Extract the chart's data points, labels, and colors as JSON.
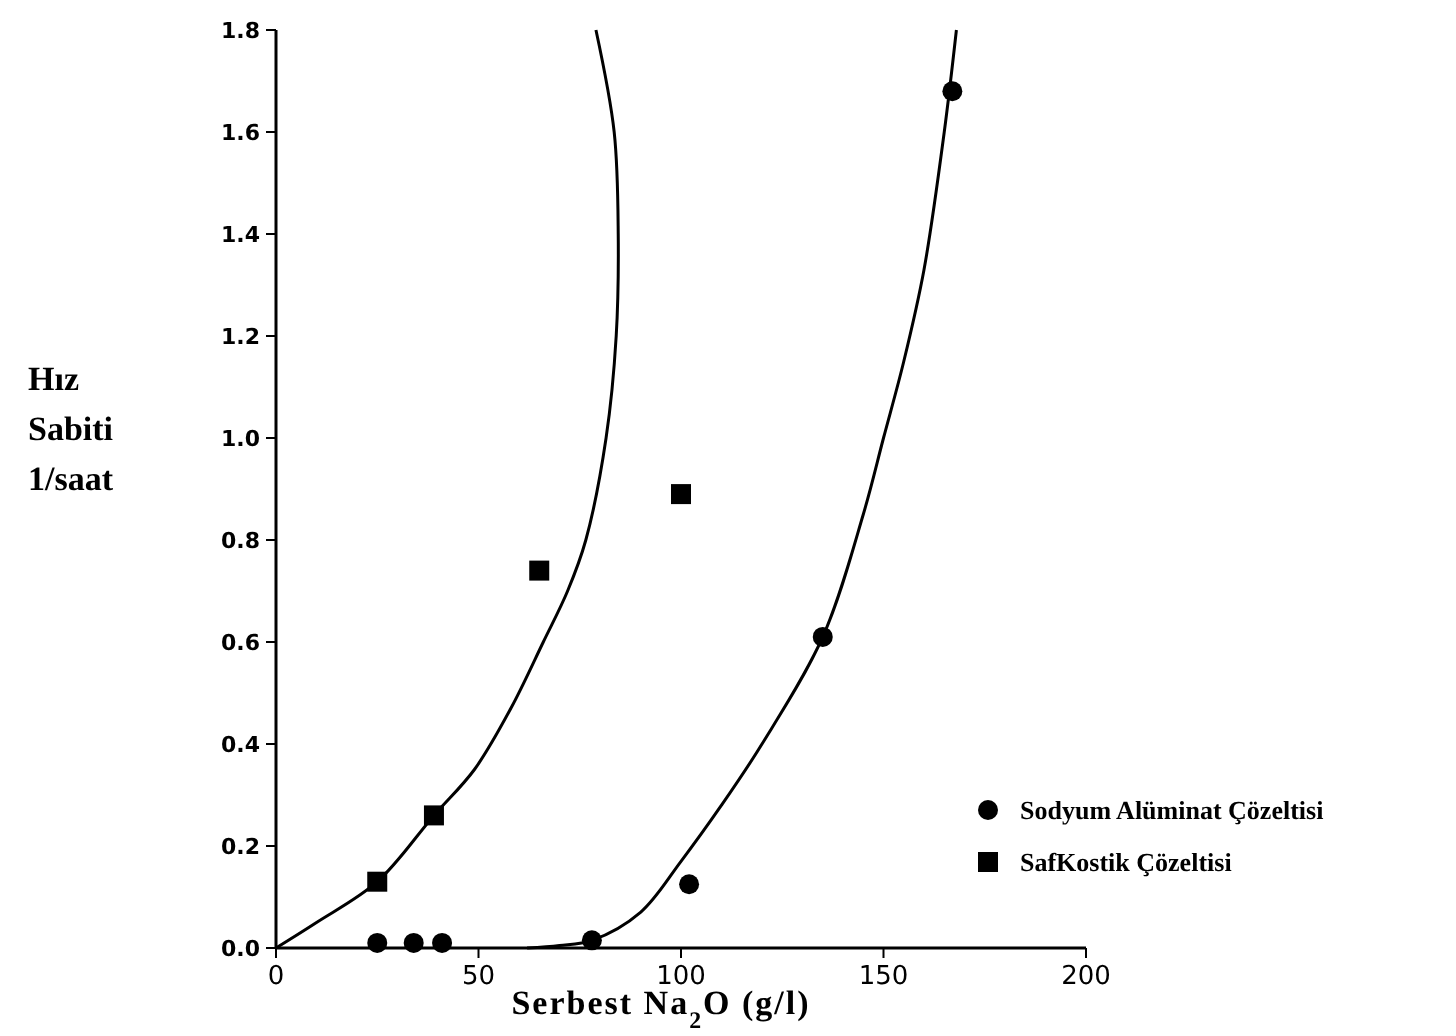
{
  "chart_data": {
    "type": "scatter",
    "xlabel": "Serbest Na$_{2}$O  (g/l)",
    "ylabel": "Hız Sabiti 1/saat",
    "xlim": [
      0,
      200
    ],
    "xticks": [
      0,
      50,
      100,
      150,
      200
    ],
    "ylim": [
      0,
      1.8
    ],
    "yticks": [
      {
        "value": 0,
        "label": "0.0"
      },
      {
        "value": 0.2,
        "label": "0.2"
      },
      {
        "value": 0.4,
        "label": "0.4"
      },
      {
        "value": 0.6,
        "label": "0.6"
      },
      {
        "value": 0.8,
        "label": "0.8"
      },
      {
        "value": 1,
        "label": "1.0"
      },
      {
        "value": 1.2,
        "label": "1.2"
      },
      {
        "value": 1.4,
        "label": "1.4"
      },
      {
        "value": 1.6,
        "label": "1.6"
      },
      {
        "value": 1.8,
        "label": "1.8"
      }
    ],
    "grid": false,
    "legend": "right",
    "series": [
      {
        "name": "Sodyum Alüminat Çözeltisi",
        "marker": "circle",
        "color": "#000000",
        "x": [
          25,
          34,
          41,
          78,
          102,
          135,
          167
        ],
        "values": [
          0.01,
          0.01,
          0.01,
          0.015,
          0.125,
          0.61,
          1.68
        ]
      },
      {
        "name": "SafKostik Çözeltisi",
        "marker": "square",
        "color": "#000000",
        "x": [
          25,
          39,
          65,
          100
        ],
        "values": [
          0.13,
          0.26,
          0.74,
          0.89
        ]
      },
      {
        "type": "line",
        "marker": "none",
        "line_style": "solid",
        "color": "#000000",
        "x": [
          0,
          10,
          25,
          39,
          49,
          58,
          66,
          72,
          76.5,
          81.5,
          84,
          84.5,
          83.5,
          79
        ],
        "values": [
          0,
          0.05,
          0.13,
          0.26,
          0.35,
          0.47,
          0.6,
          0.7,
          0.8,
          1,
          1.2,
          1.4,
          1.6,
          1.8
        ]
      },
      {
        "type": "line",
        "marker": "none",
        "line_style": "solid",
        "color": "#000000",
        "x": [
          62,
          70,
          78,
          90,
          100,
          110,
          120,
          135,
          145,
          150,
          155,
          160,
          165,
          168
        ],
        "values": [
          0,
          0.005,
          0.015,
          0.07,
          0.17,
          0.28,
          0.4,
          0.61,
          0.85,
          1,
          1.15,
          1.33,
          1.6,
          1.8
        ]
      }
    ]
  }
}
